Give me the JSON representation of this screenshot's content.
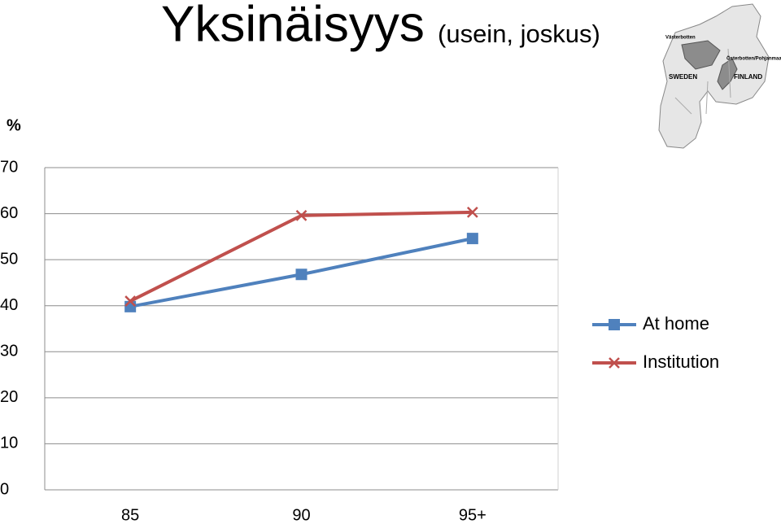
{
  "chart_data": {
    "type": "line",
    "title": "Yksinäisyys",
    "subtitle": "(usein, joskus)",
    "y_label": "%",
    "categories": [
      "85",
      "90",
      "95+"
    ],
    "series": [
      {
        "name": "At home",
        "color": "#4f81bd",
        "marker": "square",
        "values": [
          39.8,
          46.8,
          54.6
        ]
      },
      {
        "name": "Institution",
        "color": "#c0504d",
        "marker": "x",
        "values": [
          41.0,
          59.6,
          60.3
        ]
      }
    ],
    "ylim": [
      0,
      70
    ],
    "yticks": [
      0,
      10,
      20,
      30,
      40,
      50,
      60,
      70
    ],
    "grid": true,
    "legend": "right"
  },
  "map": {
    "labels": [
      "Västerbotten",
      "Österbotten/Pohjanmaa",
      "SWEDEN",
      "FINLAND"
    ]
  }
}
